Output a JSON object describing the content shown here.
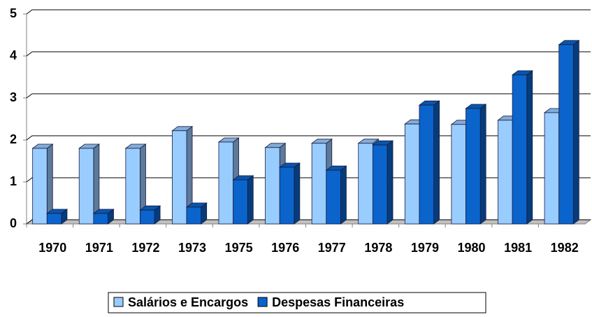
{
  "chart_data": {
    "type": "bar3d",
    "categories": [
      "1970",
      "1971",
      "1972",
      "1973",
      "1975",
      "1976",
      "1977",
      "1978",
      "1979",
      "1980",
      "1981",
      "1982"
    ],
    "series": [
      {
        "name": "Salários e Encargos",
        "color": "#99ccff",
        "values": [
          1.8,
          1.8,
          1.8,
          2.22,
          1.95,
          1.82,
          1.92,
          1.92,
          2.38,
          2.37,
          2.47,
          2.65
        ]
      },
      {
        "name": "Despesas Financeiras",
        "color": "#0a64cc",
        "values": [
          0.25,
          0.25,
          0.33,
          0.4,
          1.05,
          1.35,
          1.28,
          1.88,
          2.83,
          2.75,
          3.55,
          4.27
        ]
      }
    ],
    "ylim": [
      0,
      5
    ],
    "yticks": [
      0,
      1,
      2,
      3,
      4,
      5
    ],
    "grid": true,
    "legend": "bottom"
  }
}
